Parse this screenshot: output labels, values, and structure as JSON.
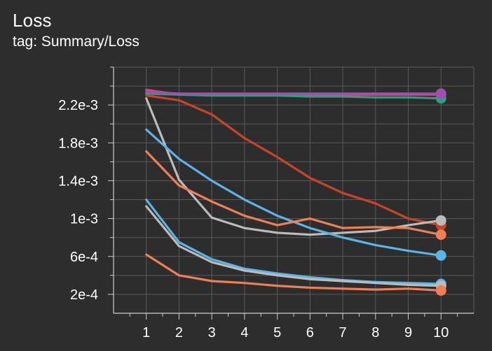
{
  "header": {
    "title": "Loss",
    "subtitle": "tag: Summary/Loss"
  },
  "chart_data": {
    "type": "line",
    "title": "Loss",
    "subtitle": "tag: Summary/Loss",
    "xlabel": "",
    "ylabel": "",
    "xlim": [
      0,
      11
    ],
    "ylim": [
      0,
      0.0026
    ],
    "x_ticks": [
      1,
      2,
      3,
      4,
      5,
      6,
      7,
      8,
      9,
      10
    ],
    "x_tick_labels": [
      "1",
      "2",
      "3",
      "4",
      "5",
      "6",
      "7",
      "8",
      "9",
      "10"
    ],
    "y_ticks": [
      0.0002,
      0.0006,
      0.001,
      0.0014,
      0.0018,
      0.0022
    ],
    "y_tick_labels": [
      "2e-4",
      "6e-4",
      "1e-3",
      "1.4e-3",
      "1.8e-3",
      "2.2e-3"
    ],
    "grid": true,
    "legend": "none",
    "background_color": "#2d2d2d",
    "grid_color": "#5a5a5a",
    "x": [
      1,
      2,
      3,
      4,
      5,
      6,
      7,
      8,
      9,
      10
    ],
    "series": [
      {
        "color": "#e0408a",
        "values": [
          0.00236,
          0.00231,
          0.00231,
          0.00231,
          0.00231,
          0.00231,
          0.00231,
          0.00231,
          0.00231,
          0.00231
        ]
      },
      {
        "color": "#2f9e7a",
        "values": [
          0.00232,
          0.00231,
          0.0023,
          0.0023,
          0.0023,
          0.00229,
          0.00229,
          0.00228,
          0.00228,
          0.00227
        ]
      },
      {
        "color": "#9e4fb0",
        "values": [
          0.00234,
          0.00232,
          0.00232,
          0.00232,
          0.00232,
          0.00232,
          0.00232,
          0.00232,
          0.00232,
          0.00232
        ]
      },
      {
        "color": "#c8432a",
        "values": [
          0.0023,
          0.00225,
          0.0021,
          0.00185,
          0.00165,
          0.00143,
          0.00127,
          0.00116,
          0.001,
          0.00093
        ]
      },
      {
        "color": "#bbbbbb",
        "values": [
          0.00227,
          0.00141,
          0.00101,
          0.0009,
          0.00085,
          0.00083,
          0.00085,
          0.00087,
          0.00093,
          0.00098
        ]
      },
      {
        "color": "#5ab4e8",
        "values": [
          0.00194,
          0.00163,
          0.0014,
          0.0012,
          0.00103,
          0.0009,
          0.0008,
          0.00072,
          0.00066,
          0.00061
        ]
      },
      {
        "color": "#f07e56",
        "values": [
          0.00171,
          0.00135,
          0.00118,
          0.00103,
          0.00093,
          0.001,
          0.0009,
          0.00091,
          0.0009,
          0.00083
        ]
      },
      {
        "color": "#5ab4e8",
        "values": [
          0.0012,
          0.00075,
          0.00057,
          0.00047,
          0.00042,
          0.00038,
          0.00035,
          0.00033,
          0.00032,
          0.00031
        ]
      },
      {
        "color": "#bbbbbb",
        "values": [
          0.00113,
          0.00071,
          0.00054,
          0.00045,
          0.0004,
          0.00036,
          0.00034,
          0.00032,
          0.0003,
          0.00029
        ]
      },
      {
        "color": "#f07e56",
        "values": [
          0.00062,
          0.0004,
          0.00034,
          0.00032,
          0.00029,
          0.00027,
          0.00026,
          0.00025,
          0.00026,
          0.00024
        ]
      }
    ]
  }
}
